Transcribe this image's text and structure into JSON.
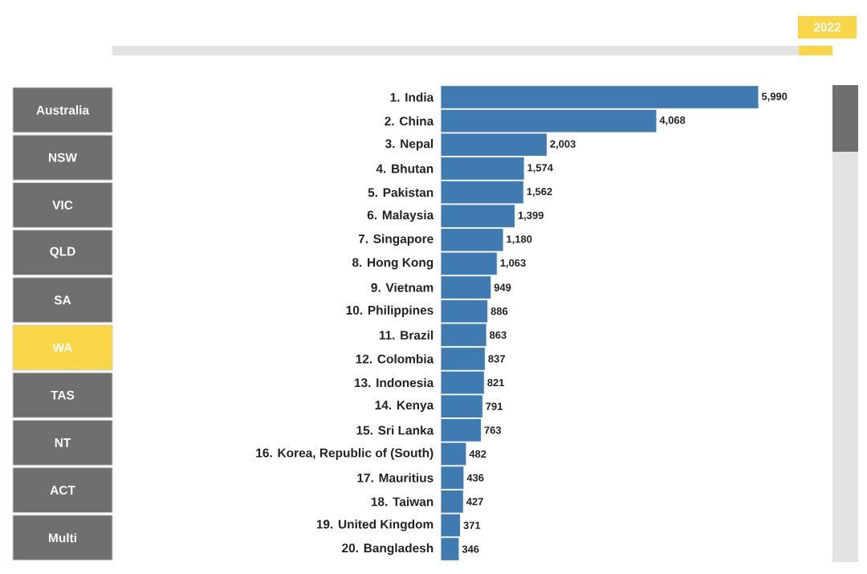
{
  "chart_data": [
    {
      "type": "bar",
      "orientation": "horizontal",
      "color": "#3f7bb0",
      "categories": [
        "1. India",
        "2. China",
        "3. Nepal",
        "4. Bhutan",
        "5. Pakistan",
        "6. Malaysia",
        "7. Singapore",
        "8. Hong Kong",
        "9. Vietnam",
        "10. Philippines",
        "11. Brazil",
        "12. Colombia",
        "13. Indonesia",
        "14. Kenya",
        "15. Sri Lanka",
        "16. Korea, Republic of (South)",
        "17. Mauritius",
        "18. Taiwan",
        "19. United Kingdom",
        "20. Bangladesh"
      ],
      "values": [
        5990,
        4068,
        2003,
        1574,
        1562,
        1399,
        1180,
        1063,
        949,
        886,
        863,
        837,
        821,
        791,
        763,
        482,
        436,
        427,
        371,
        346
      ],
      "value_labels": [
        "5,990",
        "4,068",
        "2,003",
        "1,574",
        "1,562",
        "1,399",
        "1,180",
        "1,063",
        "949",
        "886",
        "863",
        "837",
        "821",
        "791",
        "763",
        "482",
        "436",
        "427",
        "371",
        "346"
      ]
    },
    {
      "type": "other",
      "categories": [
        "Australia",
        "NSW",
        "VIC",
        "QLD",
        "SA",
        "WA",
        "TAS",
        "NT",
        "ACT",
        "Multi"
      ],
      "colors": [
        "#6f6f6f",
        "#6f6f6f",
        "#6f6f6f",
        "#6f6f6f",
        "#6f6f6f",
        "#f9d648",
        "#6f6f6f",
        "#6f6f6f",
        "#6f6f6f",
        "#6f6f6f"
      ],
      "annotations": [
        "2022"
      ]
    }
  ]
}
